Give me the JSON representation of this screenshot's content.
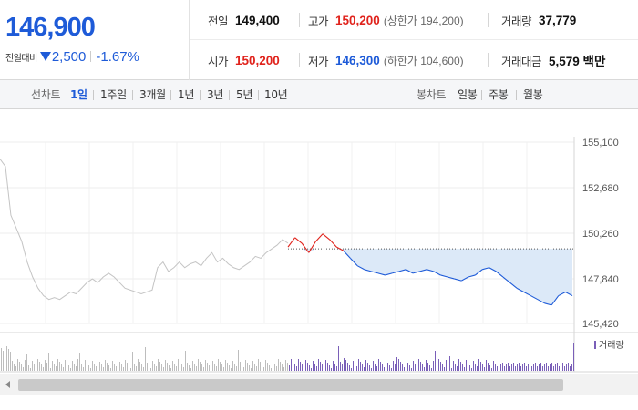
{
  "quote": {
    "current_price": "146,900",
    "change_label": "전일대비",
    "change_value": "2,500",
    "change_direction": "down",
    "change_rate": "-1.67%",
    "prev_close_label": "전일",
    "prev_close": "149,400",
    "high_label": "고가",
    "high": "150,200",
    "upper_limit": "(상한가 194,200)",
    "volume_label": "거래량",
    "volume": "37,779",
    "open_label": "시가",
    "open": "150,200",
    "low_label": "저가",
    "low": "146,300",
    "lower_limit": "(하한가 104,600)",
    "turnover_label": "거래대금",
    "turnover": "5,579 백만"
  },
  "toolbar": {
    "line_chart_label": "선차트",
    "periods": [
      "1일",
      "1주일",
      "3개월",
      "1년",
      "3년",
      "5년",
      "10년"
    ],
    "active_period": "1일",
    "candle_chart_label": "봉차트",
    "candle_periods": [
      "일봉",
      "주봉",
      "월봉"
    ]
  },
  "colors": {
    "up": "#e0231c",
    "down": "#1e5bd8",
    "fill_down": "#dce9f8",
    "history": "#c4c4c4",
    "volume_today": "#7a5fb8",
    "volume_history": "#bdbdbd"
  },
  "chart_data": {
    "type": "line",
    "y_ticks": [
      "155,100",
      "152,680",
      "150,260",
      "147,840",
      "145,420"
    ],
    "ylim": [
      145420,
      155100
    ],
    "base_price": 149400,
    "volume_legend": "거래량",
    "history_series": [
      154200,
      153800,
      151200,
      150500,
      149800,
      148700,
      147900,
      147300,
      146900,
      146700,
      146800,
      146700,
      146900,
      147100,
      147000,
      147300,
      147600,
      147800,
      147600,
      147900,
      148100,
      147900,
      147600,
      147300,
      147200,
      147100,
      147000,
      147100,
      147200,
      148400,
      148700,
      148200,
      148400,
      148700,
      148400,
      148600,
      148700,
      148500,
      148900,
      149200,
      148700,
      148900,
      148600,
      148400,
      148300,
      148500,
      148700,
      149000,
      148900,
      149200,
      149400,
      149600,
      149900,
      149700
    ],
    "today_series": [
      149500,
      150000,
      149700,
      149200,
      149800,
      150200,
      149900,
      149500,
      149300,
      148900,
      148500,
      148300,
      148200,
      148100,
      148000,
      148100,
      148200,
      148300,
      148100,
      148200,
      148300,
      148200,
      148000,
      147900,
      147800,
      147700,
      147900,
      148000,
      148300,
      148400,
      148200,
      147900,
      147600,
      147300,
      147100,
      146900,
      146700,
      146500,
      146400,
      146900,
      147100,
      146900
    ]
  }
}
